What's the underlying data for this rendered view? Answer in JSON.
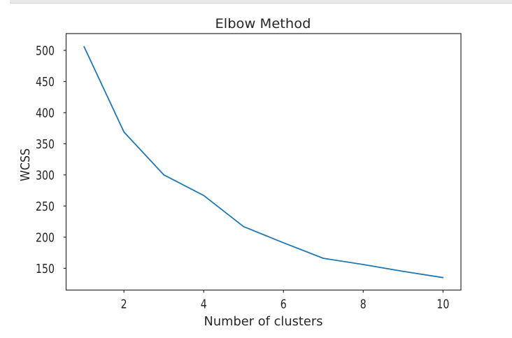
{
  "top_bar": {
    "fill": "#e9e9e9",
    "border_color": "#cfcfcf"
  },
  "chart_data": {
    "type": "line",
    "title": "Elbow Method",
    "xlabel": "Number of clusters",
    "ylabel": "WCSS",
    "x": [
      1,
      2,
      3,
      4,
      5,
      6,
      7,
      8,
      9,
      10
    ],
    "series": [
      {
        "name": "WCSS",
        "color": "#1f77b4",
        "values": [
          506,
          369,
          300,
          267,
          217,
          191,
          166,
          156,
          145,
          135
        ]
      }
    ],
    "xlim": [
      0.55,
      10.45
    ],
    "ylim": [
      115,
      527
    ],
    "xticks": [
      2,
      4,
      6,
      8,
      10
    ],
    "yticks": [
      150,
      200,
      250,
      300,
      350,
      400,
      450,
      500
    ],
    "grid": false,
    "legend": "none"
  },
  "style": {
    "text_color": "#262626",
    "spine_color": "#2b2b2b",
    "line_color": "#1f77b4",
    "background": "#ffffff"
  }
}
